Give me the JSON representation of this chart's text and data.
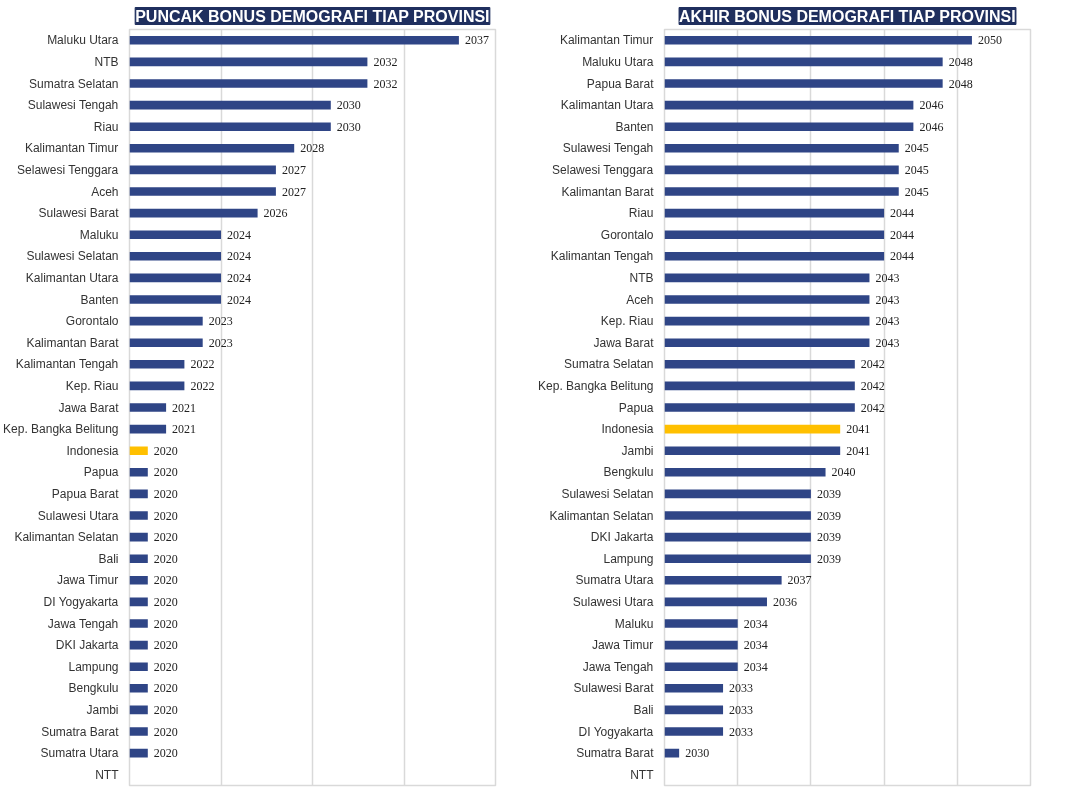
{
  "chart_data": [
    {
      "type": "bar",
      "orientation": "horizontal",
      "title": "PUNCAK BONUS DEMOGRAFI TIAP PROVINSI",
      "categories": [
        "Maluku Utara",
        "NTB",
        "Sumatra Selatan",
        "Sulawesi Tengah",
        "Riau",
        "Kalimantan Timur",
        "Selawesi Tenggara",
        "Aceh",
        "Sulawesi Barat",
        "Maluku",
        "Sulawesi Selatan",
        "Kalimantan Utara",
        "Banten",
        "Gorontalo",
        "Kalimantan Barat",
        "Kalimantan Tengah",
        "Kep. Riau",
        "Jawa Barat",
        "Kep. Bangka Belitung",
        "Indonesia",
        "Papua",
        "Papua Barat",
        "Sulawesi Utara",
        "Kalimantan Selatan",
        "Bali",
        "Jawa Timur",
        "DI Yogyakarta",
        "Jawa Tengah",
        "DKI Jakarta",
        "Lampung",
        "Bengkulu",
        "Jambi",
        "Sumatra Barat",
        "Sumatra Utara",
        "NTT"
      ],
      "values": [
        2037,
        2032,
        2032,
        2030,
        2030,
        2028,
        2027,
        2027,
        2026,
        2024,
        2024,
        2024,
        2024,
        2023,
        2023,
        2022,
        2022,
        2021,
        2021,
        2020,
        2020,
        2020,
        2020,
        2020,
        2020,
        2020,
        2020,
        2020,
        2020,
        2020,
        2020,
        2020,
        2020,
        2020,
        null
      ],
      "colors": [
        "#2f4586",
        "#2f4586",
        "#2f4586",
        "#2f4586",
        "#2f4586",
        "#2f4586",
        "#2f4586",
        "#2f4586",
        "#2f4586",
        "#2f4586",
        "#2f4586",
        "#2f4586",
        "#2f4586",
        "#2f4586",
        "#2f4586",
        "#2f4586",
        "#2f4586",
        "#2f4586",
        "#2f4586",
        "#ffc000",
        "#2f4586",
        "#2f4586",
        "#2f4586",
        "#2f4586",
        "#2f4586",
        "#2f4586",
        "#2f4586",
        "#2f4586",
        "#2f4586",
        "#2f4586",
        "#2f4586",
        "#2f4586",
        "#2f4586",
        "#2f4586",
        "#2f4586"
      ],
      "xlim": [
        2019,
        2039
      ],
      "xticks": [
        {
          "value": 2019,
          "label": null
        },
        {
          "value": 2024,
          "label": null
        },
        {
          "value": 2029,
          "label": null
        },
        {
          "value": 2034,
          "label": null
        },
        {
          "value": 2039,
          "label": null
        }
      ],
      "grid": "x",
      "tick_labels": "y",
      "data_labels": true
    },
    {
      "type": "bar",
      "orientation": "horizontal",
      "title": "AKHIR BONUS DEMOGRAFI TIAP PROVINSI",
      "categories": [
        "Kalimantan Timur",
        "Maluku Utara",
        "Papua Barat",
        "Kalimantan Utara",
        "Banten",
        "Sulawesi Tengah",
        "Selawesi Tenggara",
        "Kalimantan Barat",
        "Riau",
        "Gorontalo",
        "Kalimantan Tengah",
        "NTB",
        "Aceh",
        "Kep. Riau",
        "Jawa Barat",
        "Sumatra Selatan",
        "Kep. Bangka Belitung",
        "Papua",
        "Indonesia",
        "Jambi",
        "Bengkulu",
        "Sulawesi Selatan",
        "Kalimantan Selatan",
        "DKI Jakarta",
        "Lampung",
        "Sumatra Utara",
        "Sulawesi Utara",
        "Maluku",
        "Jawa Timur",
        "Jawa Tengah",
        "Sulawesi Barat",
        "Bali",
        "DI Yogyakarta",
        "Sumatra Barat",
        "NTT"
      ],
      "values": [
        2050,
        2048,
        2048,
        2046,
        2046,
        2045,
        2045,
        2045,
        2044,
        2044,
        2044,
        2043,
        2043,
        2043,
        2043,
        2042,
        2042,
        2042,
        2041,
        2041,
        2040,
        2039,
        2039,
        2039,
        2039,
        2037,
        2036,
        2034,
        2034,
        2034,
        2033,
        2033,
        2033,
        2030,
        null
      ],
      "colors": [
        "#2f4586",
        "#2f4586",
        "#2f4586",
        "#2f4586",
        "#2f4586",
        "#2f4586",
        "#2f4586",
        "#2f4586",
        "#2f4586",
        "#2f4586",
        "#2f4586",
        "#2f4586",
        "#2f4586",
        "#2f4586",
        "#2f4586",
        "#2f4586",
        "#2f4586",
        "#2f4586",
        "#ffc000",
        "#2f4586",
        "#2f4586",
        "#2f4586",
        "#2f4586",
        "#2f4586",
        "#2f4586",
        "#2f4586",
        "#2f4586",
        "#2f4586",
        "#2f4586",
        "#2f4586",
        "#2f4586",
        "#2f4586",
        "#2f4586",
        "#2f4586",
        "#2f4586"
      ],
      "xlim": [
        2029,
        2054
      ],
      "xticks": [
        {
          "value": 2029,
          "label": null
        },
        {
          "value": 2034,
          "label": null
        },
        {
          "value": 2039,
          "label": null
        },
        {
          "value": 2044,
          "label": null
        },
        {
          "value": 2049,
          "label": null
        },
        {
          "value": 2054,
          "label": null
        }
      ],
      "grid": "x",
      "tick_labels": "y",
      "data_labels": true
    }
  ]
}
